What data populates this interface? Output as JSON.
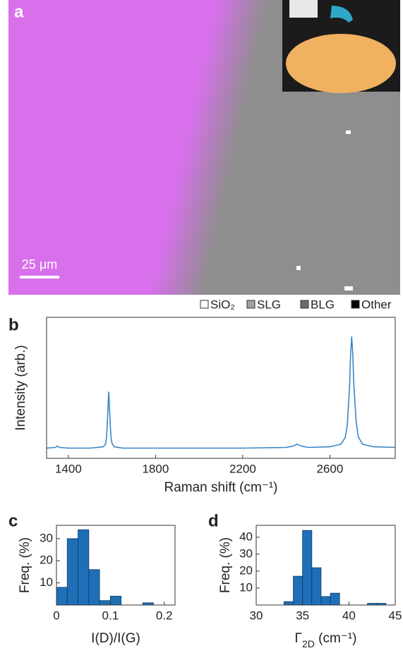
{
  "panel_a": {
    "label": "a",
    "scale_bar": "25 μm",
    "legend": [
      "SiO₂",
      "SLG",
      "BLG",
      "Other"
    ]
  },
  "chart_data": [
    {
      "type": "line",
      "label": "b",
      "ylabel": "Intensity (arb.)",
      "xlabel": "Raman shift (cm⁻¹)",
      "color": "#3a86c8",
      "x": [
        1300,
        1340,
        1350,
        1360,
        1400,
        1500,
        1560,
        1570,
        1575,
        1580,
        1585,
        1590,
        1595,
        1600,
        1610,
        1650,
        1800,
        2000,
        2200,
        2400,
        2430,
        2450,
        2470,
        2500,
        2600,
        2650,
        2670,
        2680,
        2690,
        2695,
        2700,
        2705,
        2710,
        2720,
        2730,
        2750,
        2800,
        2900
      ],
      "values": [
        0.08,
        0.085,
        0.095,
        0.085,
        0.08,
        0.08,
        0.09,
        0.11,
        0.16,
        0.32,
        0.52,
        0.35,
        0.17,
        0.12,
        0.09,
        0.08,
        0.08,
        0.08,
        0.08,
        0.085,
        0.095,
        0.11,
        0.095,
        0.085,
        0.09,
        0.11,
        0.16,
        0.26,
        0.55,
        0.8,
        0.95,
        0.82,
        0.58,
        0.3,
        0.17,
        0.11,
        0.09,
        0.085
      ],
      "xlim": [
        1300,
        2900
      ],
      "ylim": [
        0,
        1.1
      ],
      "xticks": [
        1400,
        1800,
        2200,
        2600
      ]
    },
    {
      "type": "histogram",
      "label": "c",
      "ylabel": "Freq. (%)",
      "xlabel": [
        "I(D)/I(G)"
      ],
      "color": "#1f6fb8",
      "bins": [
        0,
        0.02,
        0.04,
        0.06,
        0.08,
        0.1,
        0.12,
        0.14,
        0.16,
        0.18,
        0.2
      ],
      "values": [
        8,
        30,
        34,
        16,
        2,
        4,
        0,
        0,
        1,
        0
      ],
      "xlim": [
        0,
        0.22
      ],
      "ylim": [
        0,
        36
      ],
      "xticks": [
        0,
        0.1,
        0.2
      ],
      "yticks": [
        10,
        20,
        30
      ]
    },
    {
      "type": "histogram",
      "label": "d",
      "ylabel": "Freq. (%)",
      "xlabel": [
        "Γ",
        "2D",
        " (cm⁻¹)"
      ],
      "color": "#1f6fb8",
      "bins": [
        33,
        34,
        35,
        36,
        37,
        38,
        39,
        40,
        41,
        42,
        43,
        44
      ],
      "values": [
        2,
        17,
        44,
        22,
        5,
        7,
        0,
        0,
        0,
        1,
        1
      ],
      "xlim": [
        30,
        45
      ],
      "ylim": [
        0,
        47
      ],
      "xticks": [
        30,
        35,
        40,
        45
      ],
      "yticks": [
        10,
        20,
        30,
        40
      ]
    }
  ]
}
